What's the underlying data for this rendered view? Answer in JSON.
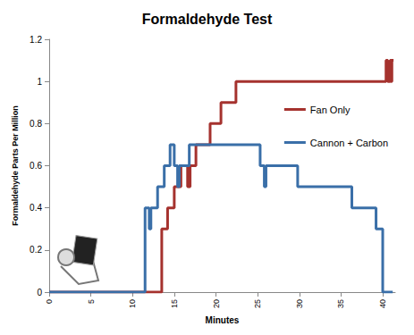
{
  "chart_data": {
    "type": "line",
    "title": "Formaldehyde Test",
    "x_label": "Minutes",
    "y_label": "Formaldehyde Parts Per Million",
    "xlim": [
      0,
      41.5
    ],
    "xticks": [
      0,
      5,
      10,
      15,
      20,
      25,
      30,
      35,
      40
    ],
    "ylim": [
      0,
      1.2
    ],
    "yticks": [
      0,
      0.2,
      0.4,
      0.6,
      0.8,
      1,
      1.2
    ],
    "grid": false,
    "legend": "right",
    "series": [
      {
        "name": "Fan Only",
        "color": "#a5322e",
        "line_style": "step",
        "x": [
          0,
          13.5,
          14.2,
          15.0,
          15.8,
          16.6,
          16.9,
          17.6,
          19.3,
          20.6,
          22.4,
          40.4,
          40.6,
          40.9,
          41.0,
          41.1,
          41.3
        ],
        "values": [
          0,
          0.3,
          0.4,
          0.5,
          0.6,
          0.5,
          0.6,
          0.7,
          0.8,
          0.9,
          1.0,
          1.1,
          1.0,
          1.1,
          1.0,
          1.1,
          1.1
        ]
      },
      {
        "name": "Cannon + Carbon",
        "color": "#3a6fa8",
        "line_style": "step",
        "x": [
          0,
          11.5,
          12.0,
          12.2,
          13.0,
          13.8,
          14.5,
          15.0,
          15.4,
          15.6,
          16.8,
          25.3,
          25.8,
          26.0,
          29.8,
          36.3,
          39.2,
          40.0,
          41.2
        ],
        "values": [
          0,
          0.4,
          0.3,
          0.4,
          0.5,
          0.6,
          0.7,
          0.6,
          0.5,
          0.6,
          0.7,
          0.6,
          0.5,
          0.6,
          0.5,
          0.4,
          0.3,
          0,
          0
        ]
      }
    ]
  }
}
